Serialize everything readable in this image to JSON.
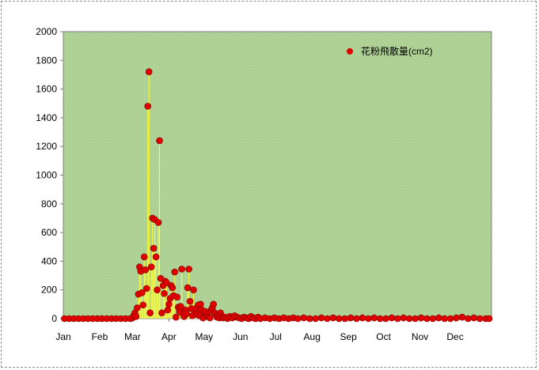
{
  "chart_data": {
    "type": "scatter",
    "series": [
      {
        "name": "花粉飛散量(cm2)",
        "color": "#e00000",
        "marker": "circle",
        "drop_lines_color": "#ffff33",
        "points": [
          [
            1,
            0
          ],
          [
            5,
            0
          ],
          [
            9,
            0
          ],
          [
            13,
            0
          ],
          [
            17,
            0
          ],
          [
            21,
            0
          ],
          [
            25,
            0
          ],
          [
            29,
            0
          ],
          [
            33,
            0
          ],
          [
            37,
            0
          ],
          [
            41,
            0
          ],
          [
            45,
            0
          ],
          [
            49,
            0
          ],
          [
            53,
            0
          ],
          [
            57,
            0
          ],
          [
            59,
            5
          ],
          [
            60,
            20
          ],
          [
            61,
            40
          ],
          [
            62,
            15
          ],
          [
            63,
            75
          ],
          [
            64,
            170
          ],
          [
            65,
            360
          ],
          [
            66,
            330
          ],
          [
            67,
            180
          ],
          [
            68,
            95
          ],
          [
            69,
            430
          ],
          [
            70,
            340
          ],
          [
            71,
            210
          ],
          [
            72,
            1480
          ],
          [
            73,
            1720
          ],
          [
            74,
            40
          ],
          [
            75,
            360
          ],
          [
            76,
            700
          ],
          [
            77,
            490
          ],
          [
            78,
            690
          ],
          [
            79,
            430
          ],
          [
            80,
            200
          ],
          [
            81,
            670
          ],
          [
            82,
            1240
          ],
          [
            83,
            280
          ],
          [
            84,
            40
          ],
          [
            85,
            230
          ],
          [
            86,
            175
          ],
          [
            87,
            260
          ],
          [
            88,
            250
          ],
          [
            89,
            60
          ],
          [
            90,
            100
          ],
          [
            91,
            140
          ],
          [
            92,
            230
          ],
          [
            93,
            215
          ],
          [
            94,
            160
          ],
          [
            95,
            325
          ],
          [
            96,
            10
          ],
          [
            97,
            150
          ],
          [
            98,
            80
          ],
          [
            99,
            50
          ],
          [
            100,
            85
          ],
          [
            101,
            345
          ],
          [
            102,
            30
          ],
          [
            103,
            15
          ],
          [
            104,
            60
          ],
          [
            105,
            35
          ],
          [
            106,
            215
          ],
          [
            107,
            345
          ],
          [
            108,
            120
          ],
          [
            109,
            70
          ],
          [
            110,
            20
          ],
          [
            111,
            200
          ],
          [
            112,
            50
          ],
          [
            113,
            70
          ],
          [
            114,
            30
          ],
          [
            115,
            95
          ],
          [
            116,
            20
          ],
          [
            117,
            100
          ],
          [
            118,
            60
          ],
          [
            119,
            5
          ],
          [
            120,
            40
          ],
          [
            121,
            50
          ],
          [
            122,
            20
          ],
          [
            123,
            30
          ],
          [
            124,
            10
          ],
          [
            125,
            5
          ],
          [
            126,
            60
          ],
          [
            127,
            75
          ],
          [
            128,
            100
          ],
          [
            129,
            40
          ],
          [
            130,
            30
          ],
          [
            131,
            10
          ],
          [
            132,
            20
          ],
          [
            133,
            5
          ],
          [
            134,
            40
          ],
          [
            135,
            15
          ],
          [
            136,
            5
          ],
          [
            138,
            10
          ],
          [
            140,
            0
          ],
          [
            142,
            15
          ],
          [
            144,
            5
          ],
          [
            146,
            20
          ],
          [
            148,
            10
          ],
          [
            150,
            5
          ],
          [
            152,
            0
          ],
          [
            154,
            10
          ],
          [
            156,
            5
          ],
          [
            158,
            0
          ],
          [
            160,
            15
          ],
          [
            162,
            5
          ],
          [
            164,
            0
          ],
          [
            166,
            10
          ],
          [
            168,
            0
          ],
          [
            172,
            5
          ],
          [
            176,
            0
          ],
          [
            180,
            5
          ],
          [
            184,
            0
          ],
          [
            188,
            5
          ],
          [
            192,
            0
          ],
          [
            196,
            5
          ],
          [
            200,
            0
          ],
          [
            205,
            5
          ],
          [
            210,
            0
          ],
          [
            215,
            0
          ],
          [
            220,
            5
          ],
          [
            225,
            0
          ],
          [
            230,
            5
          ],
          [
            235,
            0
          ],
          [
            240,
            0
          ],
          [
            245,
            5
          ],
          [
            250,
            0
          ],
          [
            255,
            5
          ],
          [
            260,
            0
          ],
          [
            265,
            5
          ],
          [
            270,
            0
          ],
          [
            275,
            0
          ],
          [
            280,
            5
          ],
          [
            285,
            0
          ],
          [
            290,
            5
          ],
          [
            295,
            0
          ],
          [
            300,
            0
          ],
          [
            305,
            5
          ],
          [
            310,
            0
          ],
          [
            315,
            0
          ],
          [
            320,
            5
          ],
          [
            325,
            0
          ],
          [
            330,
            0
          ],
          [
            335,
            5
          ],
          [
            340,
            10
          ],
          [
            345,
            0
          ],
          [
            350,
            5
          ],
          [
            355,
            0
          ],
          [
            360,
            0
          ],
          [
            363,
            0
          ]
        ]
      }
    ],
    "x_axis": {
      "tick_labels": [
        "Jan",
        "Feb",
        "Mar",
        "Apr",
        "May",
        "Jun",
        "Jul",
        "Aug",
        "Sep",
        "Oct",
        "Nov",
        "Dec"
      ],
      "range_days": [
        0,
        365
      ]
    },
    "y_axis": {
      "ylim": [
        0,
        2000
      ],
      "ticks": [
        0,
        200,
        400,
        600,
        800,
        1000,
        1200,
        1400,
        1600,
        1800,
        2000
      ]
    },
    "grid": false,
    "plot_background": "#a9d08e",
    "legend_position": "top-right"
  }
}
